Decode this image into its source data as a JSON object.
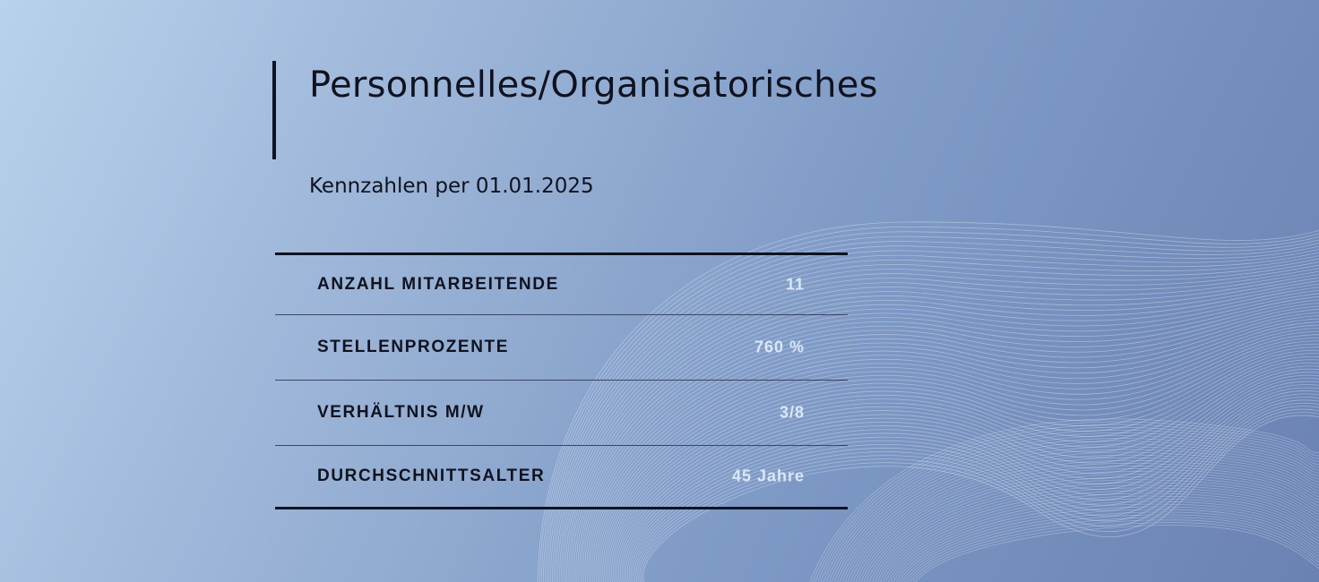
{
  "header": {
    "title": "Personnelles/Organisatorisches",
    "subtitle": "Kennzahlen per 01.01.2025"
  },
  "kpis": [
    {
      "label": "ANZAHL MITARBEITENDE",
      "value": "11"
    },
    {
      "label": "STELLENPROZENTE",
      "value": "760 %"
    },
    {
      "label": "VERHÄLTNIS M/W",
      "value": "3/8"
    },
    {
      "label": "DURCHSCHNITTSALTER",
      "value": "45  Jahre"
    }
  ],
  "colors": {
    "background_light": "#b8d2ec",
    "background_dark": "#6a82b2",
    "text_dark": "#10131f",
    "value_light": "#dbe6f6"
  }
}
